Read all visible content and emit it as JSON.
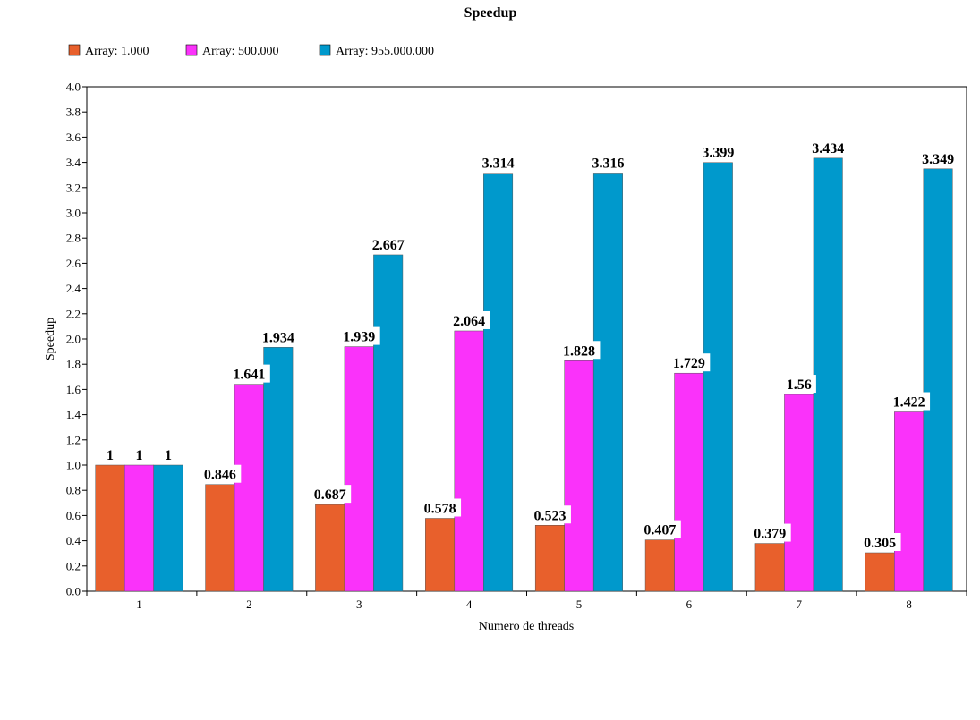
{
  "chart_data": {
    "type": "bar",
    "title": "Speedup",
    "xlabel": "Numero de threads",
    "ylabel": "Speedup",
    "ylim": [
      0,
      4.0
    ],
    "y_ticks": [
      "0.0",
      "0.2",
      "0.4",
      "0.6",
      "0.8",
      "1.0",
      "1.2",
      "1.4",
      "1.6",
      "1.8",
      "2.0",
      "2.2",
      "2.4",
      "2.6",
      "2.8",
      "3.0",
      "3.2",
      "3.4",
      "3.6",
      "3.8",
      "4.0"
    ],
    "categories": [
      "1",
      "2",
      "3",
      "4",
      "5",
      "6",
      "7",
      "8"
    ],
    "legend_position": "top-left",
    "grid": false,
    "series": [
      {
        "name": "Array: 1.000",
        "color": "#e8602c",
        "values": [
          1,
          0.846,
          0.687,
          0.578,
          0.523,
          0.407,
          0.379,
          0.305
        ],
        "labels": [
          "1",
          "0.846",
          "0.687",
          "0.578",
          "0.523",
          "0.407",
          "0.379",
          "0.305"
        ]
      },
      {
        "name": "Array: 500.000",
        "color": "#fa32fa",
        "values": [
          1,
          1.641,
          1.939,
          2.064,
          1.828,
          1.729,
          1.56,
          1.422
        ],
        "labels": [
          "1",
          "1.641",
          "1.939",
          "2.064",
          "1.828",
          "1.729",
          "1.56",
          "1.422"
        ]
      },
      {
        "name": "Array: 955.000.000",
        "color": "#0099cc",
        "values": [
          1,
          1.934,
          2.667,
          3.314,
          3.316,
          3.399,
          3.434,
          3.349
        ],
        "labels": [
          "1",
          "1.934",
          "2.667",
          "3.314",
          "3.316",
          "3.399",
          "3.434",
          "3.349"
        ]
      }
    ]
  }
}
